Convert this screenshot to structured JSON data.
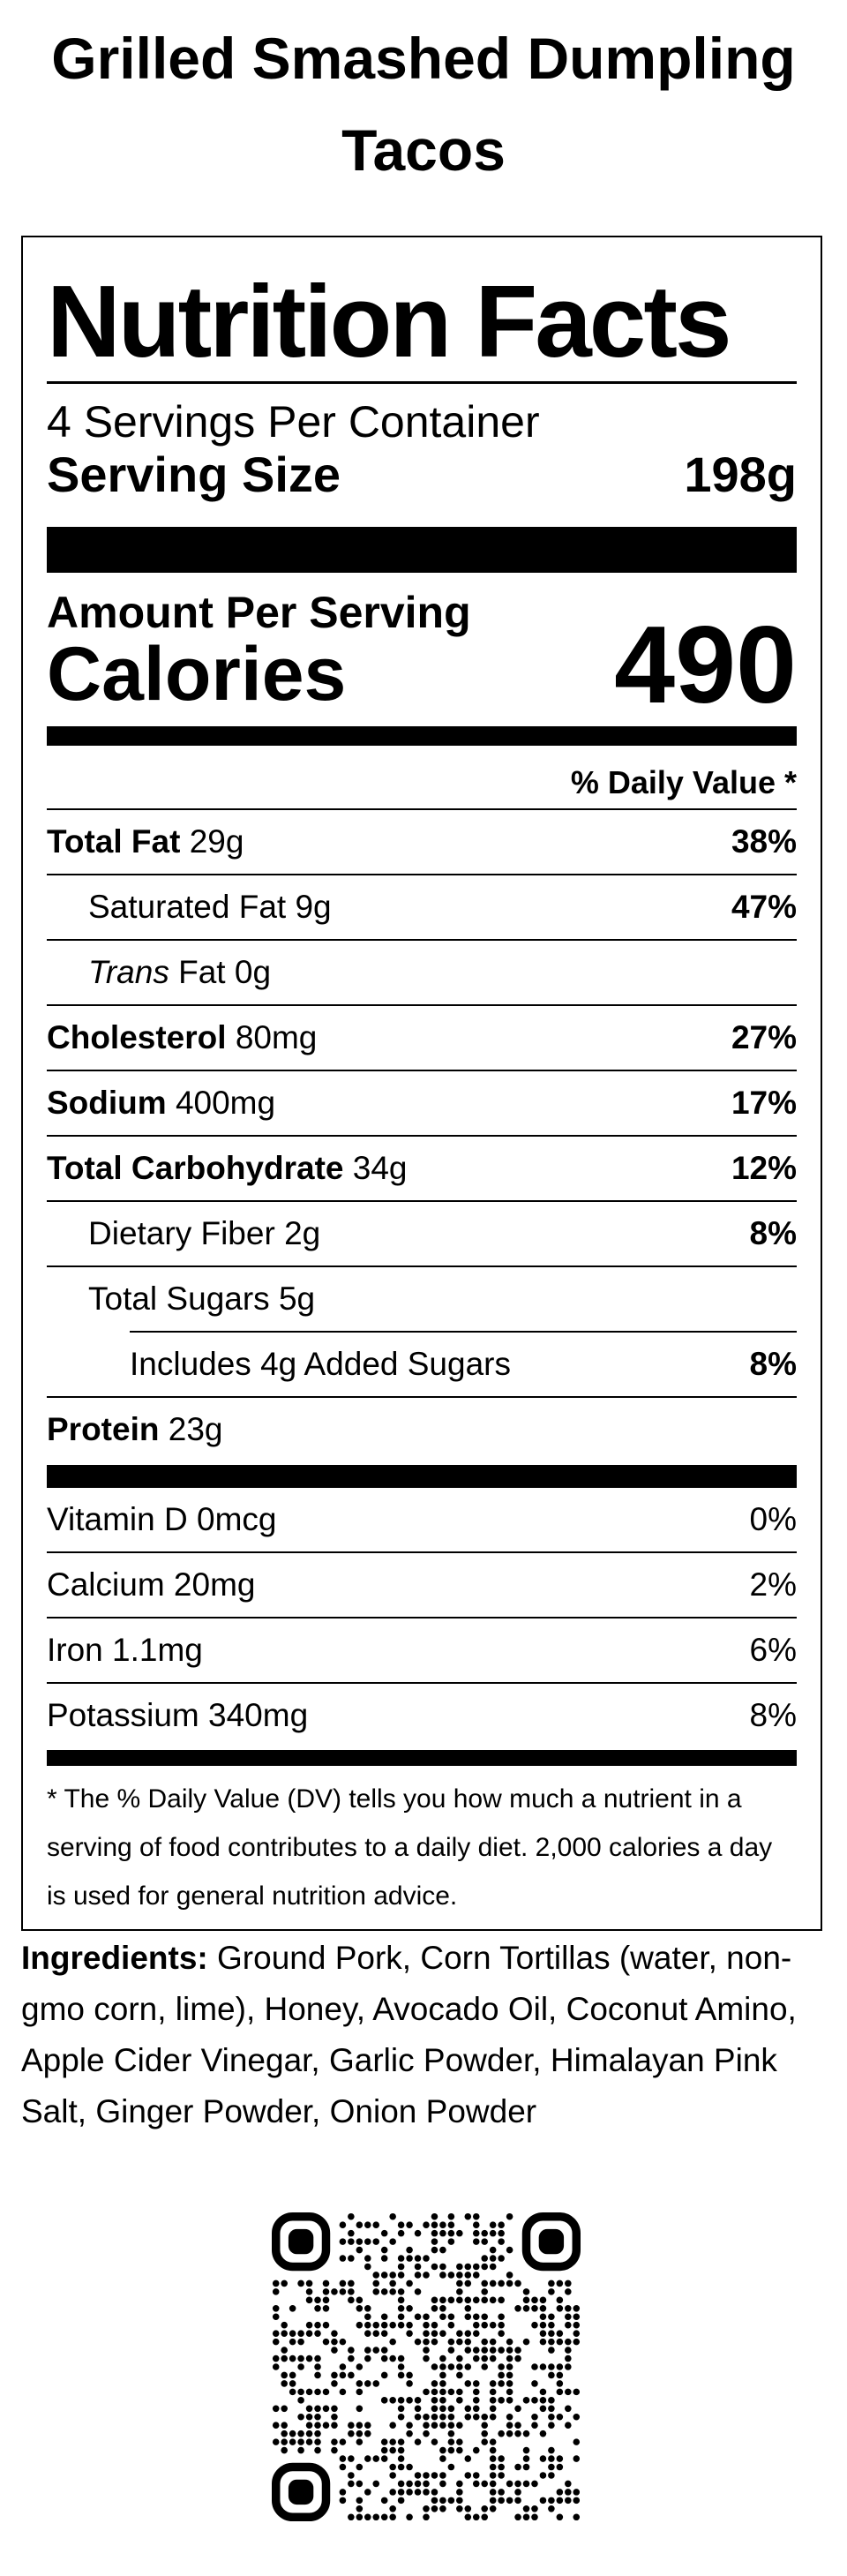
{
  "title": "Grilled Smashed Dumpling Tacos",
  "label": {
    "heading": "Nutrition Facts",
    "servings": "4 Servings Per Container",
    "serving_size_label": "Serving Size",
    "serving_size": "198g",
    "amount_per_serving": "Amount Per Serving",
    "calories_label": "Calories",
    "calories": "490",
    "daily_value_header": "% Daily Value *",
    "nutrients": [
      {
        "name": "Total Fat",
        "amount": "29g",
        "dv": "38%",
        "bold": true,
        "indent": 0
      },
      {
        "name": "Saturated Fat",
        "amount": "9g",
        "dv": "47%",
        "bold": false,
        "indent": 1
      },
      {
        "name_italic": "Trans",
        "name": "Fat",
        "amount": "0g",
        "bold": false,
        "indent": 1
      },
      {
        "name": "Cholesterol",
        "amount": "80mg",
        "dv": "27%",
        "bold": true,
        "indent": 0
      },
      {
        "name": "Sodium",
        "amount": "400mg",
        "dv": "17%",
        "bold": true,
        "indent": 0
      },
      {
        "name": "Total Carbohydrate",
        "amount": "34g",
        "dv": "12%",
        "bold": true,
        "indent": 0
      },
      {
        "name": "Dietary Fiber",
        "amount": "2g",
        "dv": "8%",
        "bold": false,
        "indent": 1
      },
      {
        "name": "Total Sugars",
        "amount": "5g",
        "bold": false,
        "indent": 1
      },
      {
        "name": "Includes 4g Added Sugars",
        "dv": "8%",
        "bold": false,
        "indent": 2
      },
      {
        "name": "Protein",
        "amount": "23g",
        "bold": true,
        "indent": 0
      }
    ],
    "vitamins": [
      {
        "name": "Vitamin D",
        "amount": "0mcg",
        "dv": "0%"
      },
      {
        "name": "Calcium",
        "amount": "20mg",
        "dv": "2%"
      },
      {
        "name": "Iron",
        "amount": "1.1mg",
        "dv": "6%"
      },
      {
        "name": "Potassium",
        "amount": "340mg",
        "dv": "8%"
      }
    ],
    "footnote": "* The % Daily Value (DV) tells you how much a nutrient in a serving of food contributes to a daily diet. 2,000 calories a day is used for general nutrition advice."
  },
  "ingredients": {
    "label": "Ingredients:",
    "text": "Ground Pork, Corn Tortillas (water, non-gmo corn, lime), Honey, Avocado Oil, Coconut Amino, Apple Cider Vinegar, Garlic Powder, Himalayan Pink Salt, Ginger Powder, Onion Powder"
  }
}
